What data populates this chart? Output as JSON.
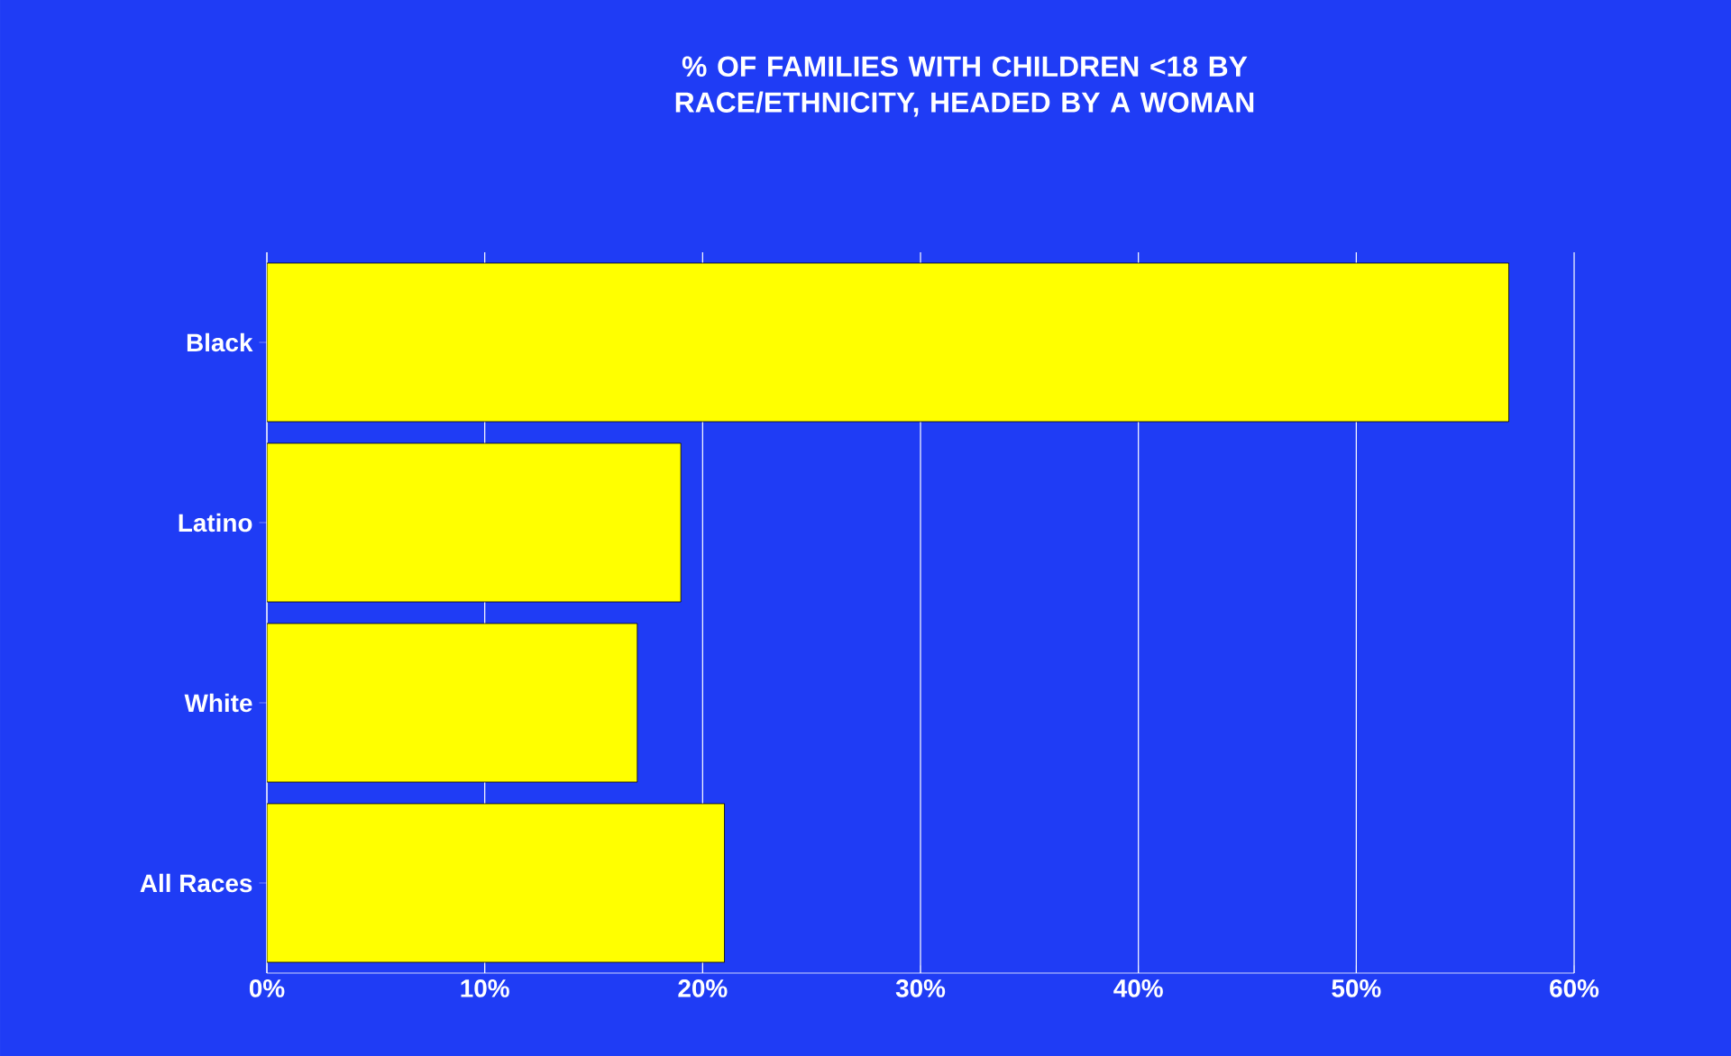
{
  "chart_data": {
    "type": "bar",
    "orientation": "horizontal",
    "title": "% OF FAMILIES WITH CHILDREN <18 BY  RACE/ETHNICITY, HEADED BY A WOMAN",
    "categories": [
      "Black",
      "Latino",
      "White",
      "All Races"
    ],
    "values": [
      57,
      19,
      17,
      21
    ],
    "color": "#ffff00",
    "xlim": [
      0,
      60
    ],
    "xticks": [
      {
        "value": 0,
        "label": "0%"
      },
      {
        "value": 10,
        "label": "10%"
      },
      {
        "value": 20,
        "label": "20%"
      },
      {
        "value": 30,
        "label": "30%"
      },
      {
        "value": 40,
        "label": "40%"
      },
      {
        "value": 50,
        "label": "50%"
      },
      {
        "value": 60,
        "label": "60%"
      }
    ],
    "grid": "x"
  }
}
